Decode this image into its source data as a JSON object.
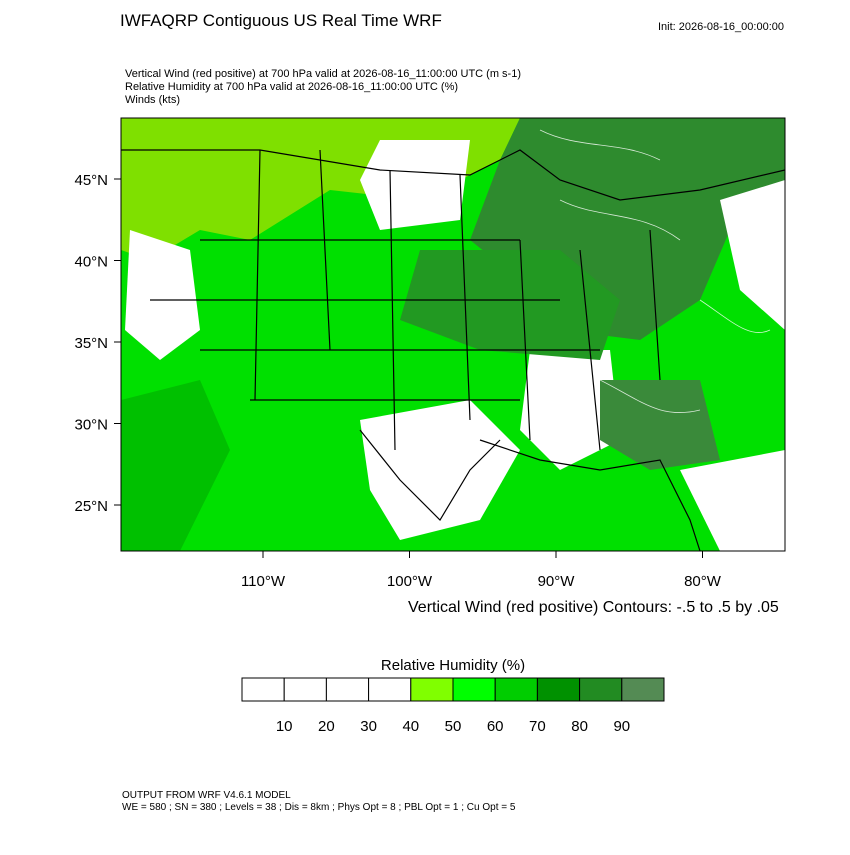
{
  "header": {
    "title": "IWFAQRP Contiguous US Real Time WRF",
    "init": "Init: 2026-08-16_00:00:00",
    "lines": [
      "Vertical Wind (red positive) at 700 hPa valid at 2026-08-16_11:00:00 UTC   (m s-1)",
      "Relative Humidity at 700 hPa valid at 2026-08-16_11:00:00 UTC   (%)",
      "Winds   (kts)"
    ]
  },
  "map": {
    "lat_ticks": [
      {
        "value": 45,
        "label": "45°N"
      },
      {
        "value": 40,
        "label": "40°N"
      },
      {
        "value": 35,
        "label": "35°N"
      },
      {
        "value": 30,
        "label": "30°N"
      },
      {
        "value": 25,
        "label": "25°N"
      }
    ],
    "lon_ticks": [
      {
        "value": -110,
        "label": "110°W"
      },
      {
        "value": -100,
        "label": "100°W"
      },
      {
        "value": -90,
        "label": "90°W"
      },
      {
        "value": -80,
        "label": "80°W"
      }
    ],
    "contour_note": "Vertical Wind (red positive) Contours: -.5 to .5 by .05"
  },
  "colorbar": {
    "title": "Relative Humidity  (%)",
    "levels": [
      10,
      20,
      30,
      40,
      50,
      60,
      70,
      80,
      90
    ],
    "colors": [
      "#ffffff",
      "#ffffff",
      "#ffffff",
      "#ffffff",
      "#80ff00",
      "#00ff00",
      "#00cd00",
      "#009100",
      "#228b22",
      "#548b54"
    ]
  },
  "footer": {
    "lines": [
      "OUTPUT FROM WRF V4.6.1 MODEL",
      "WE = 580 ; SN = 380 ; Levels = 38 ; Dis = 8km ; Phys Opt = 8 ; PBL Opt = 1 ; Cu Opt = 5"
    ]
  }
}
